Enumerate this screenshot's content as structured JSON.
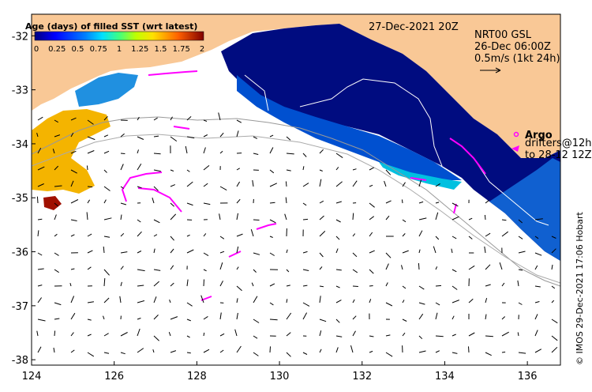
{
  "map": {
    "date_title": "27-Dec-2021 20Z",
    "info_lines": [
      "NRT00 GSL",
      "26-Dec 06:00Z",
      "0.5m/s (1kt 24h)"
    ],
    "x_ticks": [
      "124",
      "126",
      "128",
      "130",
      "132",
      "134",
      "136"
    ],
    "y_ticks": [
      "-32",
      "-33",
      "-34",
      "-35",
      "-36",
      "-37",
      "-38"
    ],
    "lon_range": [
      124,
      136.8
    ],
    "lat_range": [
      -38.1,
      -31.6
    ],
    "colors": {
      "land": "#f9c896",
      "ocean": "#ffffff",
      "age_0": "#00008b",
      "age_mid": "#1e90ff",
      "age_cyan": "#00c0e0",
      "age_yellow": "#f4c20d",
      "age_orange": "#f08a00",
      "age_red": "#a01000",
      "drifter": "#ff00ff"
    },
    "colorbar": {
      "title": "Age (days) of filled SST (wrt latest)",
      "labels": [
        "0",
        "0.25",
        "0.5",
        "0.75",
        "1",
        "1.25",
        "1.5",
        "1.75",
        "2"
      ]
    },
    "legend": {
      "argo_label": "Argo",
      "drifters_label": "drifters@12h",
      "drifters_to_label": "to 28-12 12Z"
    },
    "credit": "© IMOS 29-Dec-2021 17:06 Hobart"
  }
}
